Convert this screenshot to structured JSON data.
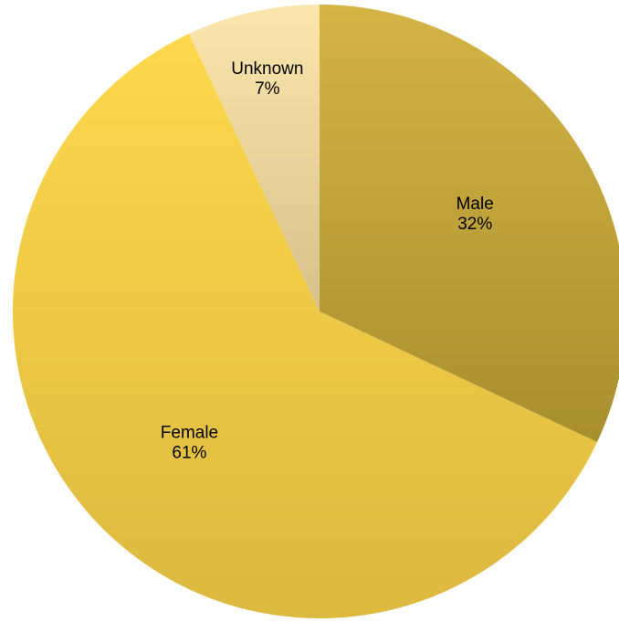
{
  "chart_data": {
    "type": "pie",
    "title": "",
    "start_angle_deg": 0,
    "direction": "clockwise",
    "slices": [
      {
        "label": "Male",
        "percent_label": "32%",
        "value": 32,
        "color_light": "#d4b445",
        "color_dark": "#a88f2e"
      },
      {
        "label": "Female",
        "percent_label": "61%",
        "value": 61,
        "color_light": "#fdd84c",
        "color_dark": "#dcb93f"
      },
      {
        "label": "Unknown",
        "percent_label": "7%",
        "value": 7,
        "color_light": "#fbe6ac",
        "color_dark": "#d6c18c"
      }
    ]
  }
}
